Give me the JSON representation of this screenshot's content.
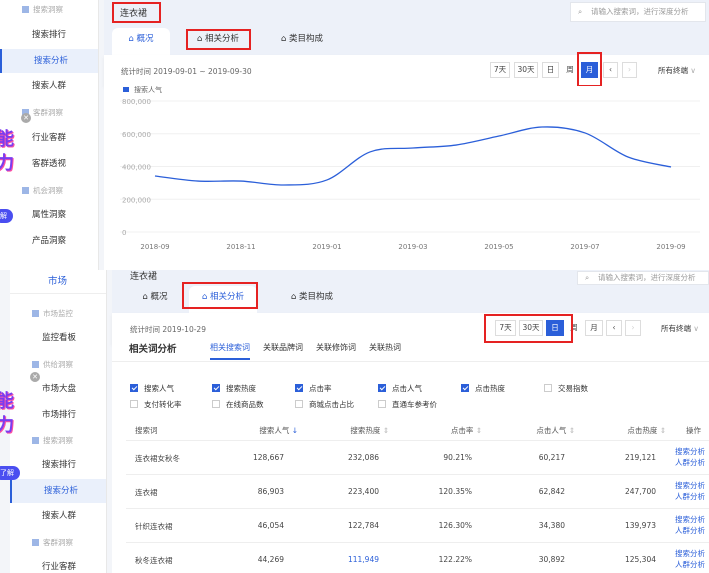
{
  "top": {
    "sidebar": {
      "items": [
        {
          "type": "section",
          "label": "搜索洞察"
        },
        {
          "label": "搜索排行"
        },
        {
          "label": "搜索分析",
          "active": true
        },
        {
          "label": "搜索人群"
        },
        {
          "type": "section",
          "label": "客群洞察"
        },
        {
          "label": "行业客群"
        },
        {
          "label": "客群透视"
        },
        {
          "type": "section",
          "label": "机会洞察"
        },
        {
          "label": "属性洞察"
        },
        {
          "label": "产品洞察"
        }
      ]
    },
    "promo": {
      "line1": "能",
      "line2": "力",
      "pill": "解"
    },
    "title": "连衣裙",
    "search_placeholder": "请输入搜索词，进行深度分析",
    "tabs": [
      {
        "label": "概况",
        "active": true
      },
      {
        "label": "相关分析"
      },
      {
        "label": "类目构成"
      }
    ],
    "stat_time": "统计时间 2019-09-01 ~ 2019-09-30",
    "buttons": [
      "7天",
      "30天",
      "日",
      "周",
      "月"
    ],
    "active_button": "月",
    "prev": "‹",
    "next": "›",
    "terminal": "所有终端",
    "chart_data": {
      "type": "line",
      "legend": [
        "搜索人气"
      ],
      "color": "#2b5fd9",
      "x": [
        "2018-09",
        "2018-10",
        "2018-11",
        "2018-12",
        "2019-01",
        "2019-02",
        "2019-03",
        "2019-04",
        "2019-05",
        "2019-06",
        "2019-07",
        "2019-08",
        "2019-09"
      ],
      "xticks": [
        "2018-09",
        "2018-11",
        "2019-01",
        "2019-03",
        "2019-05",
        "2019-07",
        "2019-09"
      ],
      "series": [
        {
          "name": "搜索人气",
          "values": [
            342000,
            311000,
            311000,
            287000,
            318000,
            489000,
            513000,
            531000,
            586000,
            641000,
            605000,
            458000,
            397000
          ]
        }
      ],
      "yticks": [
        "800,000",
        "600,000",
        "400,000",
        "200,000",
        "0"
      ],
      "ylim": [
        0,
        800000
      ],
      "grid": true
    }
  },
  "bottom": {
    "sidebar": {
      "top": "市场",
      "items": [
        {
          "type": "section",
          "label": "市场监控"
        },
        {
          "label": "监控看板"
        },
        {
          "type": "section",
          "label": "供给洞察"
        },
        {
          "label": "市场大盘"
        },
        {
          "label": "市场排行"
        },
        {
          "type": "section",
          "label": "搜索洞察"
        },
        {
          "label": "搜索排行"
        },
        {
          "label": "搜索分析",
          "active": true
        },
        {
          "label": "搜索人群"
        },
        {
          "type": "section",
          "label": "客群洞察"
        },
        {
          "label": "行业客群"
        }
      ]
    },
    "promo": {
      "line1": "能",
      "line2": "力",
      "pill": "了解"
    },
    "title": "连衣裙",
    "search_placeholder": "请输入搜索词，进行深度分析",
    "tabs": [
      {
        "label": "概况"
      },
      {
        "label": "相关分析",
        "active": true
      },
      {
        "label": "类目构成"
      }
    ],
    "stat_time": "统计时间 2019-10-29",
    "buttons": [
      "7天",
      "30天",
      "日",
      "周",
      "月"
    ],
    "active_button": "日",
    "prev": "‹",
    "next": "›",
    "terminal": "所有终端",
    "section_title": "相关词分析",
    "subtabs": [
      {
        "label": "相关搜索词",
        "active": true
      },
      {
        "label": "关联品牌词"
      },
      {
        "label": "关联修饰词"
      },
      {
        "label": "关联热词"
      }
    ],
    "checkboxes": [
      {
        "label": "搜索人气",
        "checked": true
      },
      {
        "label": "搜索热度",
        "checked": true
      },
      {
        "label": "点击率",
        "checked": true
      },
      {
        "label": "点击人气",
        "checked": true
      },
      {
        "label": "点击热度",
        "checked": true
      },
      {
        "label": "交易指数",
        "checked": false
      },
      {
        "label": "支付转化率",
        "checked": false
      },
      {
        "label": "在线商品数",
        "checked": false
      },
      {
        "label": "商城点击占比",
        "checked": false
      },
      {
        "label": "直通车参考价",
        "checked": false
      }
    ],
    "table": {
      "headers": [
        "搜索词",
        "搜索人气",
        "搜索热度",
        "点击率",
        "点击人气",
        "点击热度",
        "操作"
      ],
      "rows": [
        [
          "连衣裙女秋冬",
          "128,667",
          "232,086",
          "90.21%",
          "60,217",
          "219,121"
        ],
        [
          "连衣裙",
          "86,903",
          "223,400",
          "120.35%",
          "62,842",
          "247,700"
        ],
        [
          "针织连衣裙",
          "46,054",
          "122,784",
          "126.30%",
          "34,380",
          "139,973"
        ],
        [
          "秋冬连衣裙",
          "44,269",
          "111,949",
          "122.22%",
          "30,892",
          "125,304"
        ]
      ],
      "actions": [
        "搜索分析",
        "人群分析"
      ]
    }
  }
}
